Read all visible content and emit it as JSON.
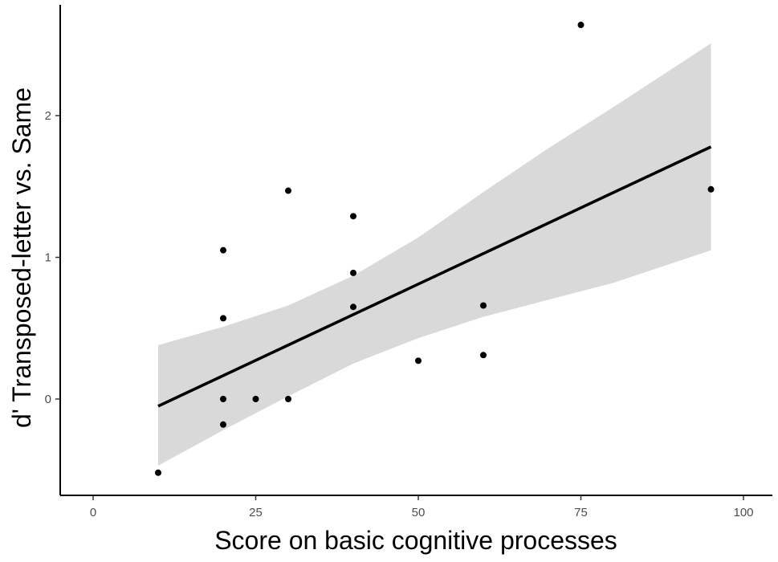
{
  "chart_data": {
    "type": "scatter",
    "title": "",
    "xlabel": "Score on basic cognitive processes",
    "ylabel": "d' Transposed-letter vs. Same",
    "xlim": [
      -10,
      105
    ],
    "ylim": [
      -0.68,
      2.76
    ],
    "x_ticks": [
      0,
      25,
      50,
      75,
      100
    ],
    "y_ticks": [
      0,
      1,
      2
    ],
    "x_tick_labels": [
      "0",
      "25",
      "50",
      "75",
      "100"
    ],
    "y_tick_labels": [
      "0",
      "1",
      "2"
    ],
    "grid": false,
    "points": [
      {
        "x": 10,
        "y": -0.52
      },
      {
        "x": 20,
        "y": 1.05
      },
      {
        "x": 20,
        "y": 0.57
      },
      {
        "x": 20,
        "y": 0.0
      },
      {
        "x": 20,
        "y": -0.18
      },
      {
        "x": 25,
        "y": 0.0
      },
      {
        "x": 30,
        "y": 1.47
      },
      {
        "x": 30,
        "y": 0.0
      },
      {
        "x": 40,
        "y": 1.29
      },
      {
        "x": 40,
        "y": 0.89
      },
      {
        "x": 40,
        "y": 0.65
      },
      {
        "x": 50,
        "y": 0.27
      },
      {
        "x": 60,
        "y": 0.66
      },
      {
        "x": 60,
        "y": 0.31
      },
      {
        "x": 75,
        "y": 2.64
      },
      {
        "x": 95,
        "y": 1.48
      }
    ],
    "regression_line": {
      "x": [
        10,
        95
      ],
      "y": [
        -0.05,
        1.78
      ]
    },
    "confidence_band": {
      "x": [
        10,
        20,
        30,
        40,
        50,
        60,
        70,
        80,
        95
      ],
      "lower": [
        -0.47,
        -0.22,
        0.02,
        0.25,
        0.43,
        0.58,
        0.7,
        0.82,
        1.05
      ],
      "upper": [
        0.38,
        0.51,
        0.66,
        0.87,
        1.14,
        1.46,
        1.77,
        2.06,
        2.51
      ]
    },
    "colors": {
      "points": "#000000",
      "line": "#000000",
      "band": "#d9d9d9",
      "axis": "#000000",
      "tick_label": "#4d4d4d"
    }
  }
}
